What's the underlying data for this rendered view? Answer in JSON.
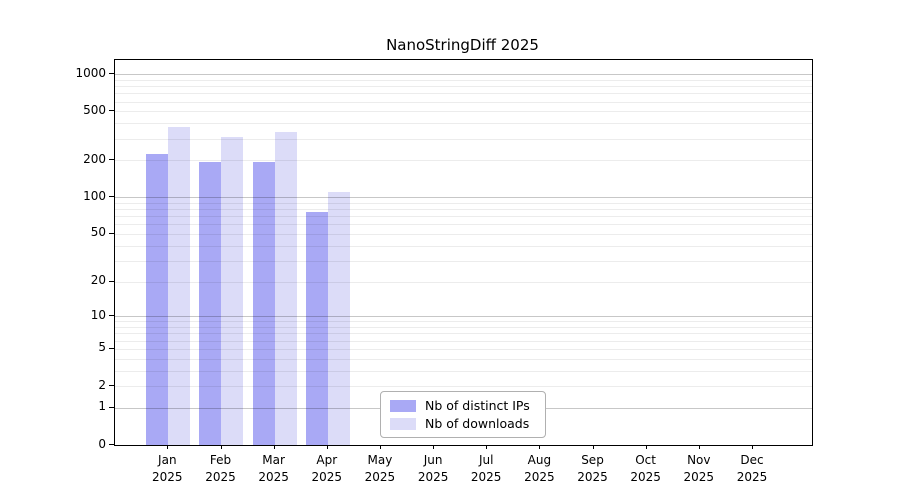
{
  "chart_data": {
    "type": "bar",
    "title": "NanoStringDiff 2025",
    "yscale": "log1p",
    "ylim": [
      0,
      1300
    ],
    "yticks": [
      0,
      1,
      2,
      5,
      10,
      20,
      50,
      100,
      200,
      500,
      1000
    ],
    "grid": "horizontal major+minor, drawn over bars",
    "legend_position": "inside bottom-center",
    "categories": [
      "Jan",
      "Feb",
      "Mar",
      "Apr",
      "May",
      "Jun",
      "Jul",
      "Aug",
      "Sep",
      "Oct",
      "Nov",
      "Dec"
    ],
    "year_label": "2025",
    "series": [
      {
        "name": "Nb of distinct IPs",
        "color": "#a9a9f5",
        "values": [
          224,
          195,
          194,
          76,
          null,
          null,
          null,
          null,
          null,
          null,
          null,
          null
        ]
      },
      {
        "name": "Nb of downloads",
        "color": "#dcdcf8",
        "values": [
          370,
          307,
          340,
          110,
          null,
          null,
          null,
          null,
          null,
          null,
          null,
          null
        ]
      }
    ]
  },
  "colors": {
    "axis": "#000000",
    "grid_major": "#c8c8c8",
    "grid_minor": "#ececec",
    "legend_border": "#b0b0b0",
    "background": "#ffffff"
  }
}
